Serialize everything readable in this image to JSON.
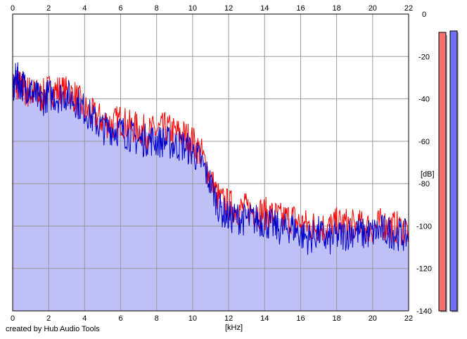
{
  "chart_data": {
    "type": "area",
    "xlabel": "[kHz]",
    "ylabel": "[dB]",
    "xlim": [
      0,
      22
    ],
    "ylim": [
      -140,
      0
    ],
    "x_ticks": [
      0,
      2,
      4,
      6,
      8,
      10,
      12,
      14,
      16,
      18,
      20,
      22
    ],
    "y_ticks": [
      0,
      -20,
      -40,
      -60,
      -80,
      -100,
      -120,
      -140
    ],
    "grid": true,
    "series": [
      {
        "color": "#ff0000",
        "x": [
          0.0,
          0.2,
          0.4,
          0.7,
          1.0,
          1.3,
          1.6,
          2.0,
          2.5,
          3.0,
          3.5,
          4.0,
          4.5,
          5.0,
          5.5,
          6.0,
          6.5,
          7.0,
          7.5,
          8.0,
          8.5,
          9.0,
          9.5,
          10.0,
          10.5,
          11.0,
          11.5,
          12.0,
          12.5,
          13.0,
          13.5,
          14.0,
          14.5,
          15.0,
          15.5,
          16.0,
          16.5,
          17.0,
          17.5,
          18.0,
          18.5,
          19.0,
          19.5,
          20.0,
          20.5,
          21.0,
          21.5,
          22.0
        ],
        "values": [
          -35,
          -33,
          -34,
          -36,
          -37,
          -38,
          -39,
          -36,
          -36,
          -37,
          -39,
          -45,
          -48,
          -50,
          -52,
          -50,
          -53,
          -54,
          -56,
          -55,
          -54,
          -56,
          -57,
          -60,
          -66,
          -78,
          -88,
          -90,
          -92,
          -92,
          -93,
          -94,
          -95,
          -97,
          -96,
          -99,
          -100,
          -100,
          -101,
          -99,
          -99,
          -100,
          -100,
          -101,
          -99,
          -100,
          -101,
          -102
        ]
      },
      {
        "color": "#0000cc",
        "x": [
          0.0,
          0.2,
          0.4,
          0.7,
          1.0,
          1.3,
          1.6,
          2.0,
          2.5,
          3.0,
          3.5,
          4.0,
          4.5,
          5.0,
          5.5,
          6.0,
          6.5,
          7.0,
          7.5,
          8.0,
          8.5,
          9.0,
          9.5,
          10.0,
          10.5,
          11.0,
          11.5,
          12.0,
          12.5,
          13.0,
          13.5,
          14.0,
          14.5,
          15.0,
          15.5,
          16.0,
          16.5,
          17.0,
          17.5,
          18.0,
          18.5,
          19.0,
          19.5,
          20.0,
          20.5,
          21.0,
          21.5,
          22.0
        ],
        "values": [
          -38,
          -29,
          -33,
          -34,
          -36,
          -39,
          -41,
          -38,
          -39,
          -38,
          -41,
          -45,
          -50,
          -54,
          -54,
          -55,
          -57,
          -60,
          -59,
          -60,
          -60,
          -62,
          -62,
          -65,
          -70,
          -80,
          -92,
          -96,
          -96,
          -97,
          -97,
          -98,
          -100,
          -102,
          -100,
          -104,
          -106,
          -103,
          -107,
          -105,
          -104,
          -102,
          -104,
          -103,
          -102,
          -103,
          -104,
          -105
        ]
      }
    ],
    "fill_color": "#c0c0f8",
    "level_meters": [
      {
        "color": "#f07070",
        "level": -3.0
      },
      {
        "color": "#7070f0",
        "level": -2.0
      }
    ]
  },
  "footer": {
    "credit": "created by Hub Audio Tools"
  }
}
